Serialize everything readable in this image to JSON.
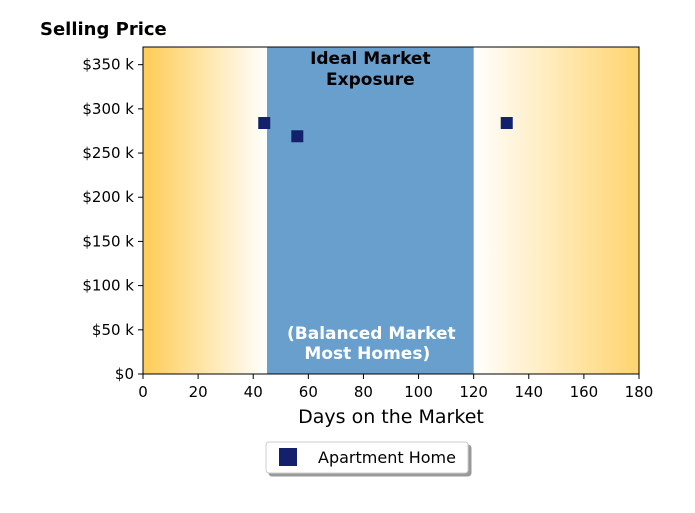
{
  "chart_data": {
    "type": "scatter",
    "title": "Selling Price",
    "xlabel": "Days on the Market",
    "ylabel": "",
    "xlim": [
      0,
      180
    ],
    "ylim": [
      0,
      370000
    ],
    "x_ticks": [
      0,
      20,
      40,
      60,
      80,
      100,
      120,
      140,
      160,
      180
    ],
    "x_tick_labels": [
      "0",
      "20",
      "40",
      "60",
      "80",
      "100",
      "120",
      "140",
      "160",
      "180"
    ],
    "y_ticks": [
      0,
      50000,
      100000,
      150000,
      200000,
      250000,
      300000,
      350000
    ],
    "y_tick_labels": [
      "$0",
      "$50 k",
      "$100 k",
      "$150 k",
      "$200 k",
      "$250 k",
      "$300 k",
      "$350 k"
    ],
    "grid": false,
    "legend_placement": "bottom-center",
    "zones": {
      "ideal_range": [
        45,
        120
      ],
      "ideal_color": "#699fcc",
      "edge_color": "#ffcc55",
      "ideal_title_lines": [
        "Ideal Market",
        "Exposure"
      ],
      "balanced_lines": [
        "(Balanced Market",
        "Most Homes)"
      ]
    },
    "series": [
      {
        "name": "Apartment Home",
        "color": "#13216d",
        "marker": "square",
        "points": [
          {
            "x": 44,
            "y": 284000
          },
          {
            "x": 56,
            "y": 269000
          },
          {
            "x": 132,
            "y": 284000
          }
        ]
      }
    ]
  }
}
